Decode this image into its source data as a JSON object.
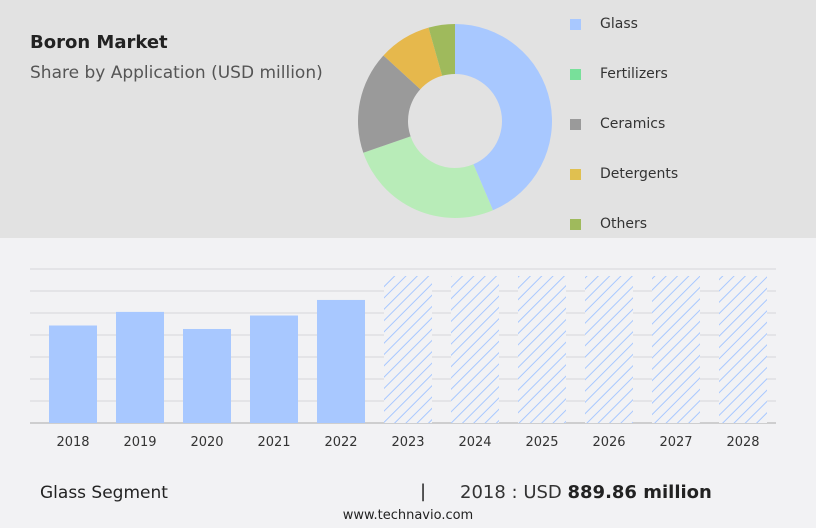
{
  "title": "Boron Market",
  "subtitle": "Share by Application (USD million)",
  "chart_data": [
    {
      "type": "pie",
      "variant": "donut",
      "categories": [
        "Glass",
        "Fertilizers",
        "Ceramics",
        "Detergents",
        "Others"
      ],
      "values": [
        43.6,
        26.1,
        17.1,
        8.8,
        4.4
      ],
      "colors": [
        "#a8c8ff",
        "#b8ecb8",
        "#9a9a9a",
        "#e6b84c",
        "#9fba5c"
      ],
      "legend_colors": [
        "#a8c8ff",
        "#78e09a",
        "#9a9a9a",
        "#e0c050",
        "#9fba5c"
      ],
      "legend_position": "right"
    },
    {
      "type": "bar",
      "categories": [
        "2018",
        "2019",
        "2020",
        "2021",
        "2022",
        "2023",
        "2024",
        "2025",
        "2026",
        "2027",
        "2028"
      ],
      "values": [
        889.86,
        1014,
        858,
        981,
        1123,
        null,
        null,
        null,
        null,
        null,
        null
      ],
      "forecast": [
        false,
        false,
        false,
        false,
        false,
        true,
        true,
        true,
        true,
        true,
        true
      ],
      "ylim": [
        0,
        1250
      ],
      "grid": true,
      "color": "#a8c8ff"
    }
  ],
  "footer": {
    "segment": "Glass Segment",
    "separator": "|",
    "year_label": "2018 : USD ",
    "value": "889.86 million",
    "site": "www.technavio.com"
  }
}
